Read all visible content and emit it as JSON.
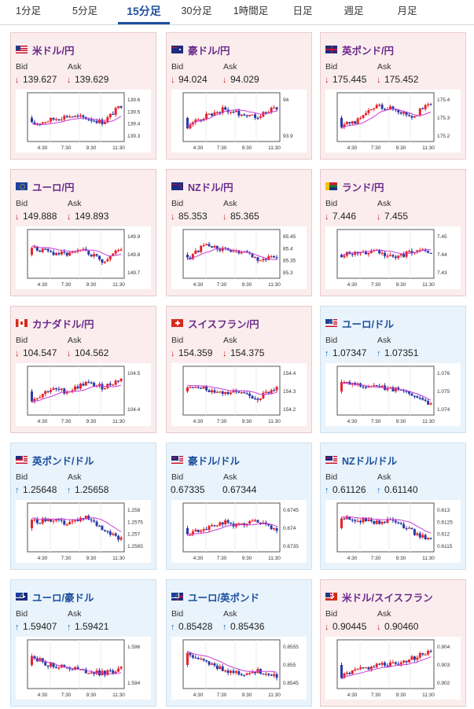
{
  "tabs": [
    {
      "label": "1分足",
      "active": false
    },
    {
      "label": "5分足",
      "active": false
    },
    {
      "label": "15分足",
      "active": true
    },
    {
      "label": "30分足",
      "active": false
    },
    {
      "label": "1時間足",
      "active": false
    },
    {
      "label": "日足",
      "active": false
    },
    {
      "label": "週足",
      "active": false
    },
    {
      "label": "月足",
      "active": false
    }
  ],
  "labels": {
    "bid": "Bid",
    "ask": "Ask"
  },
  "colors": {
    "up_arrow": "#1f72c0",
    "down_arrow": "#d02020",
    "candle_up": "#e8232b",
    "candle_down": "#2a3aa8",
    "ma": "#c93ad8"
  },
  "x_ticks": [
    "4:30",
    "7:30",
    "9:30",
    "11:30"
  ],
  "cards": [
    {
      "pair": "米ドル/円",
      "flag": "us-flag-icon",
      "dir": "down",
      "bid": "139.627",
      "ask": "139.629",
      "yticks": [
        "139.6",
        "139.5",
        "139.4",
        "139.3"
      ]
    },
    {
      "pair": "豪ドル/円",
      "flag": "au-flag-icon",
      "dir": "down",
      "bid": "94.024",
      "ask": "94.029",
      "yticks": [
        "94",
        "93.9"
      ]
    },
    {
      "pair": "英ポンド/円",
      "flag": "uk-flag-icon",
      "dir": "down",
      "bid": "175.445",
      "ask": "175.452",
      "yticks": [
        "175.4",
        "175.3",
        "175.2"
      ]
    },
    {
      "pair": "ユーロ/円",
      "flag": "eu-flag-icon",
      "dir": "down",
      "bid": "149.888",
      "ask": "149.893",
      "yticks": [
        "149.9",
        "149.8",
        "149.7"
      ]
    },
    {
      "pair": "NZドル/円",
      "flag": "nz-flag-icon",
      "dir": "down",
      "bid": "85.353",
      "ask": "85.365",
      "yticks": [
        "85.45",
        "85.4",
        "85.35",
        "85.3"
      ]
    },
    {
      "pair": "ランド/円",
      "flag": "za-flag-icon",
      "dir": "down",
      "bid": "7.446",
      "ask": "7.455",
      "yticks": [
        "7.45",
        "7.44",
        "7.43"
      ]
    },
    {
      "pair": "カナダドル/円",
      "flag": "ca-flag-icon",
      "dir": "down",
      "bid": "104.547",
      "ask": "104.562",
      "yticks": [
        "104.5",
        "104.4"
      ]
    },
    {
      "pair": "スイスフラン/円",
      "flag": "ch-flag-icon",
      "dir": "down",
      "bid": "154.359",
      "ask": "154.375",
      "yticks": [
        "154.4",
        "154.3",
        "154.2"
      ]
    },
    {
      "pair": "ユーロ/ドル",
      "flag": "eu-us-flag-icon",
      "dir": "up",
      "bid": "1.07347",
      "ask": "1.07351",
      "yticks": [
        "1.076",
        "1.075",
        "1.074"
      ]
    },
    {
      "pair": "英ポンド/ドル",
      "flag": "uk-us-flag-icon",
      "dir": "up",
      "bid": "1.25648",
      "ask": "1.25658",
      "yticks": [
        "1.258",
        "1.2575",
        "1.257",
        "1.2565"
      ]
    },
    {
      "pair": "豪ドル/ドル",
      "flag": "au-us-flag-icon",
      "dir": "none",
      "bid": "0.67335",
      "ask": "0.67344",
      "yticks": [
        "0.6745",
        "0.674",
        "0.6735"
      ]
    },
    {
      "pair": "NZドル/ドル",
      "flag": "nz-us-flag-icon",
      "dir": "up",
      "bid": "0.61126",
      "ask": "0.61140",
      "yticks": [
        "0.613",
        "0.6125",
        "0.612",
        "0.6115"
      ]
    },
    {
      "pair": "ユーロ/豪ドル",
      "flag": "eu-au-flag-icon",
      "dir": "up",
      "bid": "1.59407",
      "ask": "1.59421",
      "yticks": [
        "1.596",
        "1.594"
      ]
    },
    {
      "pair": "ユーロ/英ポンド",
      "flag": "eu-uk-flag-icon",
      "dir": "up",
      "bid": "0.85428",
      "ask": "0.85436",
      "yticks": [
        "0.8555",
        "0.855",
        "0.8545"
      ]
    },
    {
      "pair": "米ドル/スイスフラン",
      "flag": "us-ch-flag-icon",
      "dir": "down",
      "bid": "0.90445",
      "ask": "0.90460",
      "yticks": [
        "0.904",
        "0.903",
        "0.902"
      ]
    }
  ]
}
